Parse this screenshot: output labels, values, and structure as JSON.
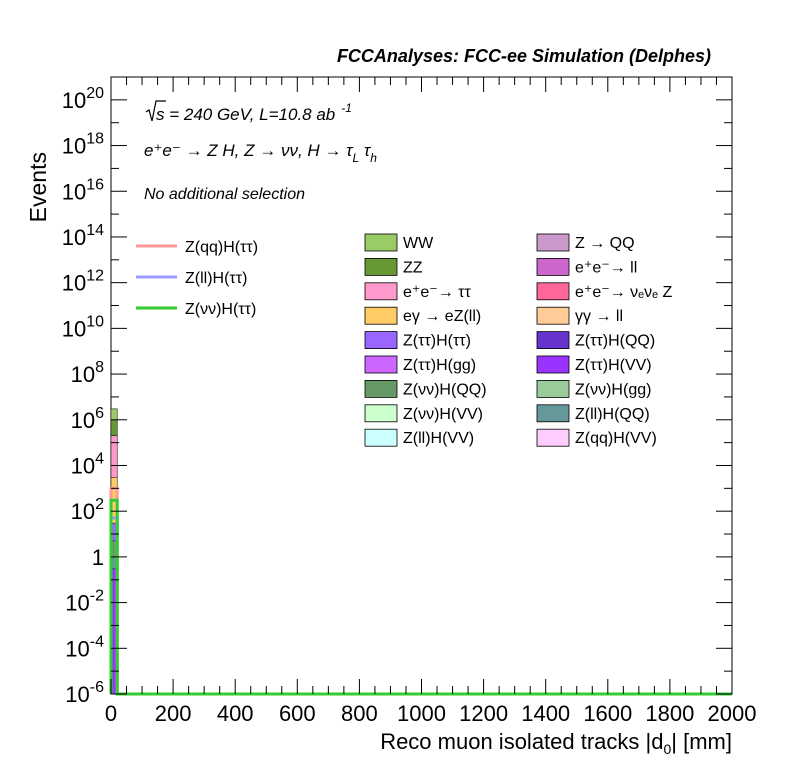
{
  "chart_data": {
    "type": "bar",
    "stacked": true,
    "title": "FCCAnalyses: FCC-ee Simulation (Delphes)",
    "xlabel": "Reco muon isolated tracks |d_0| [mm]",
    "ylabel": "Events",
    "xlim": [
      0,
      2000
    ],
    "ylim": [
      1e-06,
      1e+21
    ],
    "log_y": true,
    "x_ticks": [
      "0",
      "200",
      "400",
      "600",
      "800",
      "1000",
      "1200",
      "1400",
      "1600",
      "1800",
      "2000"
    ],
    "y_ticks": [
      {
        "base": "10",
        "exp": "20",
        "value": 1e+20
      },
      {
        "base": "10",
        "exp": "18",
        "value": 1e+18
      },
      {
        "base": "10",
        "exp": "16",
        "value": 1e+16
      },
      {
        "base": "10",
        "exp": "14",
        "value": 100000000000000.0
      },
      {
        "base": "10",
        "exp": "12",
        "value": 1000000000000.0
      },
      {
        "base": "10",
        "exp": "10",
        "value": 10000000000.0
      },
      {
        "base": "10",
        "exp": "8",
        "value": 100000000.0
      },
      {
        "base": "10",
        "exp": "6",
        "value": 1000000.0
      },
      {
        "base": "10",
        "exp": "4",
        "value": 10000.0
      },
      {
        "base": "10",
        "exp": "2",
        "value": 100.0
      },
      {
        "base": "1",
        "exp": "",
        "value": 1
      },
      {
        "base": "10",
        "exp": "-2",
        "value": 0.01
      },
      {
        "base": "10",
        "exp": "-4",
        "value": 0.0001
      },
      {
        "base": "10",
        "exp": "-6",
        "value": 1e-06
      }
    ],
    "annotations": {
      "energy_sqrt": "s",
      "energy_rest": " = 240 GeV, L=10.8 ab",
      "lumi_exp": "-1",
      "process": "e⁺e⁻ → Z H, Z → νν, H → τ_L τ_h",
      "selection": "No additional selection"
    },
    "bin": [
      0,
      20
    ],
    "stack": [
      {
        "name": "WW",
        "color": "#99cc66",
        "low": 1e-06,
        "high": 3000000.0
      },
      {
        "name": "ZZ",
        "color": "#669933",
        "low": 1e-06,
        "high": 1000000.0
      },
      {
        "name": "e⁺e⁻→ ττ",
        "color": "#ff99cc",
        "low": 1e-06,
        "high": 200000.0
      },
      {
        "name": "eγ → eZ(ll)",
        "color": "#ffcc66",
        "low": 1e-06,
        "high": 3000.0
      },
      {
        "name": "Z(ττ)H(ττ)",
        "color": "#9966ff",
        "low": 1e-06,
        "high": 30
      },
      {
        "name": "Z(νν)H(QQ)",
        "color": "#669966",
        "low": 1e-06,
        "high": 5
      },
      {
        "name": "Z(ll)H(QQ)",
        "color": "#669999",
        "low": 1e-06,
        "high": 1
      },
      {
        "name": "Z(ττ)H(VV)",
        "color": "#9933ff",
        "low": 1e-06,
        "high": 0.3
      }
    ],
    "signal_series": [
      {
        "name": "Z(qq)H(ττ)",
        "color": "#ff9999",
        "value": 1000.0
      },
      {
        "name": "Z(ll)H(ττ)",
        "color": "#9999ff",
        "value": 50
      },
      {
        "name": "Z(νν)H(ττ)",
        "color": "#33cc33",
        "value": 300
      }
    ],
    "legend_signals": [
      {
        "name": "Z(qq)H(ττ)",
        "color": "#ff9999"
      },
      {
        "name": "Z(ll)H(ττ)",
        "color": "#9999ff"
      },
      {
        "name": "Z(νν)H(ττ)",
        "color": "#33cc33"
      }
    ],
    "legend_backgrounds": [
      {
        "name": "WW",
        "color": "#99cc66"
      },
      {
        "name": "Z → QQ",
        "color": "#cc99cc"
      },
      {
        "name": "ZZ",
        "color": "#669933"
      },
      {
        "name": "e⁺e⁻→ ll",
        "color": "#cc66cc"
      },
      {
        "name": "e⁺e⁻→ ττ",
        "color": "#ff99cc"
      },
      {
        "name": "e⁺e⁻→ νₑνₑ Z",
        "color": "#ff6699"
      },
      {
        "name": "eγ → eZ(ll)",
        "color": "#ffcc66"
      },
      {
        "name": "γγ → ll",
        "color": "#ffcc99"
      },
      {
        "name": "Z(ττ)H(ττ)",
        "color": "#9966ff"
      },
      {
        "name": "Z(ττ)H(QQ)",
        "color": "#6633cc"
      },
      {
        "name": "Z(ττ)H(gg)",
        "color": "#cc66ff"
      },
      {
        "name": "Z(ττ)H(VV)",
        "color": "#9933ff"
      },
      {
        "name": "Z(νν)H(QQ)",
        "color": "#669966"
      },
      {
        "name": "Z(νν)H(gg)",
        "color": "#99cc99"
      },
      {
        "name": "Z(νν)H(VV)",
        "color": "#ccffcc"
      },
      {
        "name": "Z(ll)H(QQ)",
        "color": "#669999"
      },
      {
        "name": "Z(ll)H(VV)",
        "color": "#ccffff"
      },
      {
        "name": "Z(qq)H(VV)",
        "color": "#ffccff"
      }
    ]
  }
}
